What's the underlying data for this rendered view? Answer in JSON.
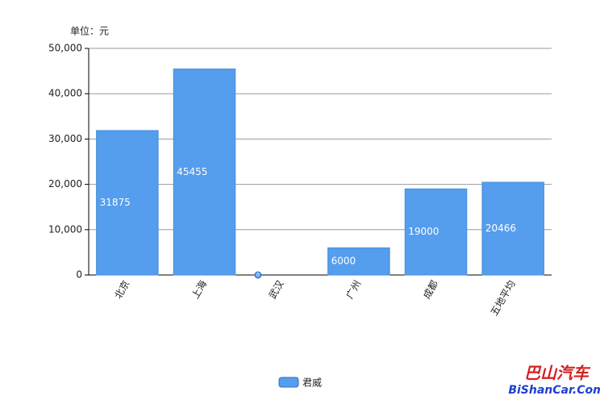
{
  "chart_data": {
    "type": "bar",
    "unit_label": "单位：元",
    "categories": [
      "北京",
      "上海",
      "武汉",
      "广州",
      "成都",
      "五地平均"
    ],
    "series": [
      {
        "name": "君威",
        "color": "#559ded",
        "values": [
          31875,
          45455,
          0,
          6000,
          19000,
          20466
        ]
      }
    ],
    "ylim": [
      0,
      50000
    ],
    "yticks": [
      0,
      {
        "value": 10000,
        "label": "10,000"
      },
      {
        "value": 20000,
        "label": "20,000"
      },
      {
        "value": 30000,
        "label": "30,000"
      },
      {
        "value": 40000,
        "label": "40,000"
      },
      {
        "value": 50000,
        "label": "50,000"
      }
    ],
    "grid": true,
    "legend": "bottom",
    "watermark": [
      "巴山汽车",
      "BiShanCar.Com"
    ]
  }
}
